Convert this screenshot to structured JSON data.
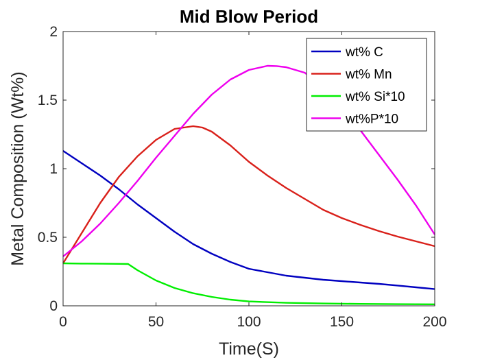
{
  "chart_data": {
    "type": "line",
    "title": "Mid Blow Period",
    "xlabel": "Time(S)",
    "ylabel": "Metal Composition (Wt%)",
    "xlim": [
      0,
      200
    ],
    "ylim": [
      0,
      2
    ],
    "xticks": [
      0,
      50,
      100,
      150,
      200
    ],
    "yticks": [
      0,
      0.5,
      1,
      1.5,
      2
    ],
    "xtick_labels": [
      "0",
      "50",
      "100",
      "150",
      "200"
    ],
    "ytick_labels": [
      "0",
      "0.5",
      "1",
      "1.5",
      "2"
    ],
    "grid": false,
    "legend_position": "top-right",
    "series": [
      {
        "name": "wt% C",
        "color": "#0000c0",
        "x": [
          0,
          10,
          20,
          30,
          40,
          50,
          60,
          70,
          80,
          90,
          100,
          110,
          120,
          130,
          140,
          150,
          160,
          170,
          180,
          190,
          200
        ],
        "y": [
          1.13,
          1.04,
          0.95,
          0.85,
          0.74,
          0.64,
          0.54,
          0.45,
          0.38,
          0.32,
          0.27,
          0.245,
          0.22,
          0.205,
          0.19,
          0.18,
          0.17,
          0.16,
          0.148,
          0.135,
          0.122
        ]
      },
      {
        "name": "wt% Mn",
        "color": "#d9201a",
        "x": [
          0,
          10,
          20,
          30,
          40,
          50,
          60,
          70,
          75,
          80,
          90,
          100,
          110,
          120,
          130,
          140,
          150,
          160,
          170,
          180,
          190,
          200
        ],
        "y": [
          0.31,
          0.53,
          0.75,
          0.94,
          1.09,
          1.21,
          1.29,
          1.31,
          1.3,
          1.27,
          1.17,
          1.05,
          0.95,
          0.86,
          0.78,
          0.7,
          0.64,
          0.59,
          0.545,
          0.505,
          0.47,
          0.435
        ]
      },
      {
        "name": "wt% Si*10",
        "color": "#00ee00",
        "x": [
          0,
          10,
          20,
          30,
          35,
          40,
          50,
          60,
          70,
          80,
          90,
          100,
          120,
          140,
          160,
          180,
          200
        ],
        "y": [
          0.31,
          0.308,
          0.307,
          0.306,
          0.305,
          0.26,
          0.185,
          0.13,
          0.092,
          0.065,
          0.045,
          0.032,
          0.022,
          0.017,
          0.014,
          0.012,
          0.011
        ]
      },
      {
        "name": "wt%P*10",
        "color": "#ee00ee",
        "x": [
          0,
          10,
          20,
          30,
          40,
          50,
          60,
          70,
          80,
          90,
          100,
          110,
          115,
          120,
          130,
          140,
          150,
          160,
          170,
          180,
          190,
          200
        ],
        "y": [
          0.36,
          0.47,
          0.6,
          0.75,
          0.91,
          1.08,
          1.24,
          1.4,
          1.54,
          1.65,
          1.72,
          1.75,
          1.748,
          1.74,
          1.7,
          1.6,
          1.45,
          1.28,
          1.1,
          0.92,
          0.73,
          0.52
        ]
      }
    ]
  }
}
